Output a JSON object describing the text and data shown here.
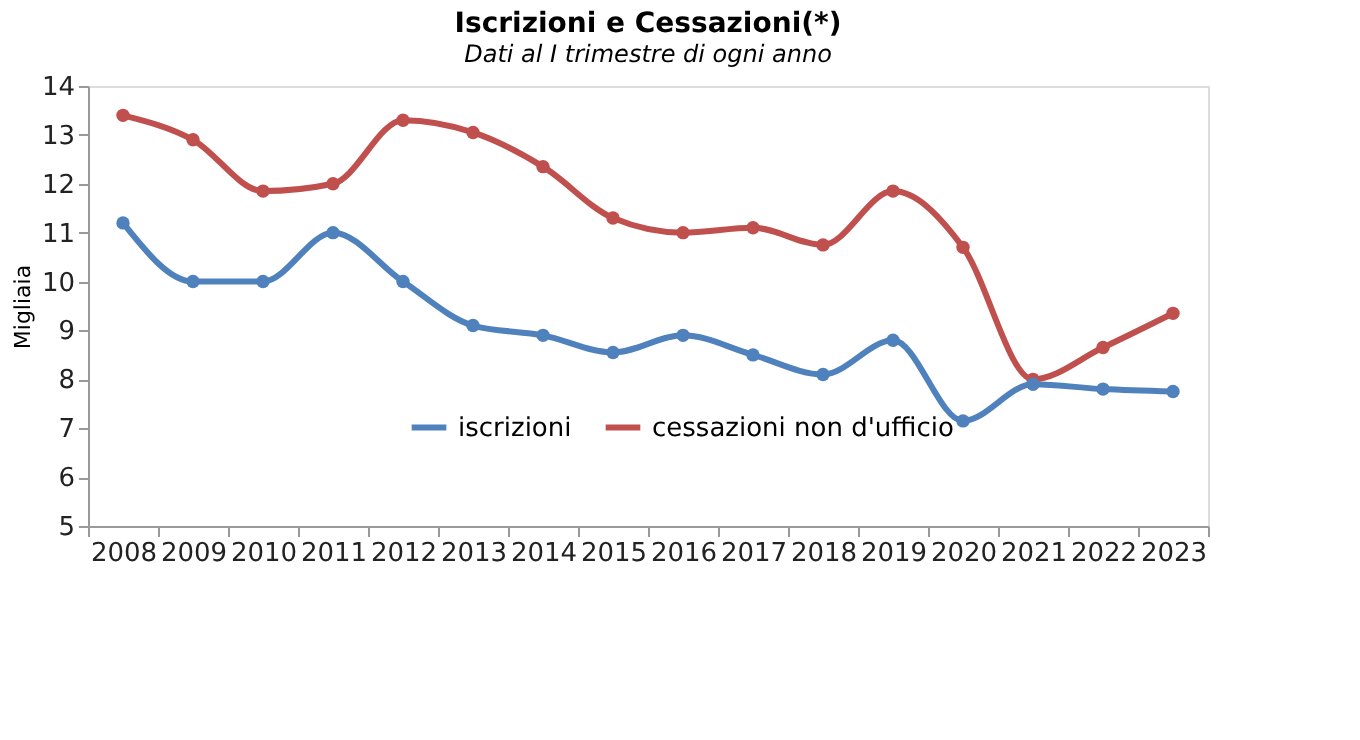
{
  "chart_data": {
    "type": "line",
    "title": "Iscrizioni e Cessazioni(*)",
    "subtitle": "Dati al I trimestre di ogni anno",
    "ylabel": "Migliaia",
    "categories": [
      "2008",
      "2009",
      "2010",
      "2011",
      "2012",
      "2013",
      "2014",
      "2015",
      "2016",
      "2017",
      "2018",
      "2019",
      "2020",
      "2021",
      "2022",
      "2023"
    ],
    "series": [
      {
        "name": "iscrizioni",
        "color": "#4f81bd",
        "values": [
          11.2,
          10.0,
          10.0,
          11.0,
          10.0,
          9.1,
          8.9,
          8.55,
          8.9,
          8.5,
          8.1,
          8.8,
          7.15,
          7.9,
          7.8,
          7.75
        ]
      },
      {
        "name": "cessazioni non d'ufficio",
        "color": "#c0504d",
        "values": [
          13.4,
          12.9,
          11.85,
          12.0,
          13.3,
          13.05,
          12.35,
          11.3,
          11.0,
          11.1,
          10.75,
          11.85,
          10.7,
          8.0,
          8.65,
          9.35
        ]
      }
    ],
    "ylim": [
      5,
      14
    ],
    "yticks": [
      5,
      6,
      7,
      8,
      9,
      10,
      11,
      12,
      13,
      14
    ],
    "grid": false,
    "legend": "bottom",
    "marker": "circle",
    "line_style": "solid"
  }
}
